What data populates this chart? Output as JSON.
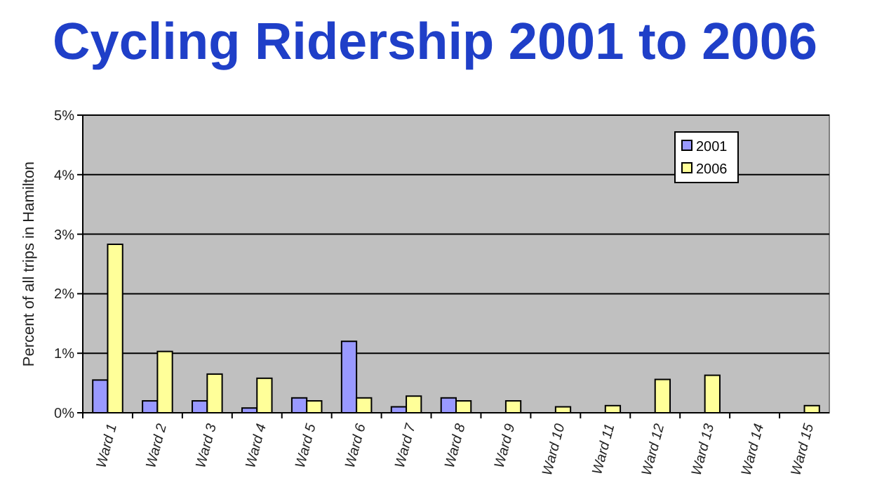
{
  "chart_data": {
    "type": "bar",
    "title": "Cycling Ridership 2001 to 2006",
    "ylabel": "Percent of all trips in Hamilton",
    "categories": [
      "Ward 1",
      "Ward 2",
      "Ward 3",
      "Ward 4",
      "Ward 5",
      "Ward 6",
      "Ward 7",
      "Ward 8",
      "Ward 9",
      "Ward 10",
      "Ward 11",
      "Ward 12",
      "Ward 13",
      "Ward 14",
      "Ward 15"
    ],
    "series": [
      {
        "name": "2001",
        "color": "#9999ff",
        "values": [
          0.55,
          0.2,
          0.2,
          0.08,
          0.25,
          1.2,
          0.1,
          0.25,
          0,
          0,
          0,
          0,
          0,
          0,
          0
        ]
      },
      {
        "name": "2006",
        "color": "#ffff99",
        "values": [
          2.83,
          1.03,
          0.65,
          0.58,
          0.2,
          0.25,
          0.28,
          0.2,
          0.2,
          0.1,
          0.12,
          0.56,
          0.63,
          0,
          0.12
        ]
      }
    ],
    "ylim": [
      0,
      5
    ],
    "yticks": [
      {
        "value": 0,
        "label": "0%"
      },
      {
        "value": 1,
        "label": "1%"
      },
      {
        "value": 2,
        "label": "2%"
      },
      {
        "value": 3,
        "label": "3%"
      },
      {
        "value": 4,
        "label": "4%"
      },
      {
        "value": 5,
        "label": "5%"
      }
    ],
    "grid": "y",
    "legend": "top right"
  }
}
